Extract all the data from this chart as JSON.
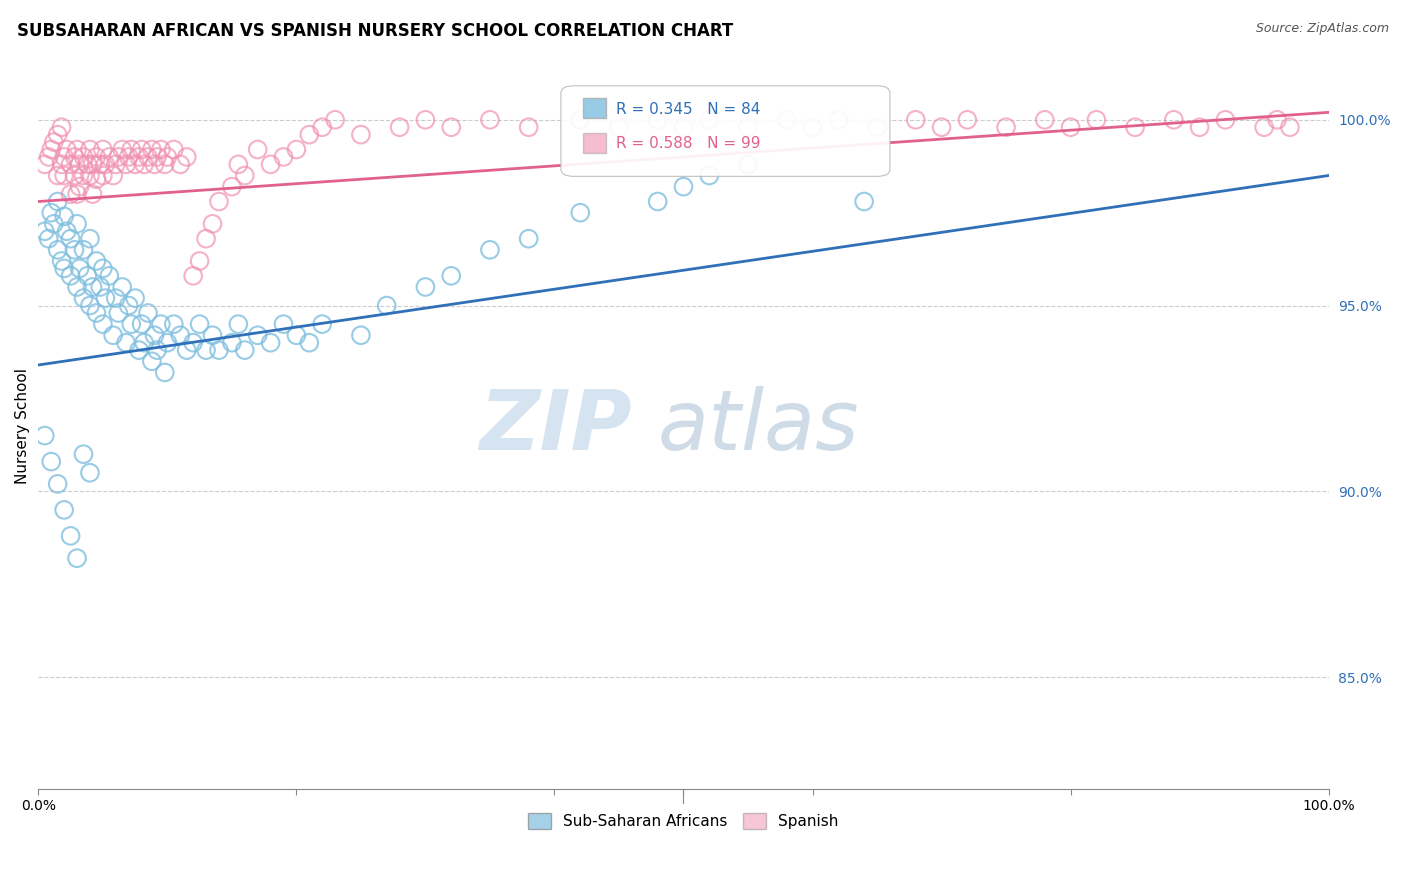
{
  "title": "SUBSAHARAN AFRICAN VS SPANISH NURSERY SCHOOL CORRELATION CHART",
  "source": "Source: ZipAtlas.com",
  "ylabel": "Nursery School",
  "ytick_labels": [
    "100.0%",
    "95.0%",
    "90.0%",
    "85.0%"
  ],
  "ytick_values": [
    1.0,
    0.95,
    0.9,
    0.85
  ],
  "xlim": [
    0.0,
    1.0
  ],
  "ylim": [
    0.82,
    1.015
  ],
  "blue_R": 0.345,
  "blue_N": 84,
  "pink_R": 0.588,
  "pink_N": 99,
  "blue_color": "#7fbfdf",
  "pink_color": "#f090b0",
  "blue_line_color": "#3070b8",
  "pink_line_color": "#e06090",
  "watermark_zip": "ZIP",
  "watermark_atlas": "atlas",
  "legend_label_blue": "Sub-Saharan Africans",
  "legend_label_pink": "Spanish",
  "blue_scatter_x": [
    0.005,
    0.008,
    0.01,
    0.012,
    0.015,
    0.015,
    0.018,
    0.02,
    0.02,
    0.022,
    0.025,
    0.025,
    0.028,
    0.03,
    0.03,
    0.032,
    0.035,
    0.035,
    0.038,
    0.04,
    0.04,
    0.042,
    0.045,
    0.045,
    0.048,
    0.05,
    0.05,
    0.052,
    0.055,
    0.058,
    0.06,
    0.062,
    0.065,
    0.068,
    0.07,
    0.072,
    0.075,
    0.078,
    0.08,
    0.082,
    0.085,
    0.088,
    0.09,
    0.092,
    0.095,
    0.098,
    0.1,
    0.105,
    0.11,
    0.115,
    0.12,
    0.125,
    0.13,
    0.135,
    0.14,
    0.15,
    0.155,
    0.16,
    0.17,
    0.18,
    0.19,
    0.2,
    0.21,
    0.22,
    0.25,
    0.27,
    0.3,
    0.32,
    0.35,
    0.38,
    0.42,
    0.48,
    0.5,
    0.52,
    0.55,
    0.64,
    0.005,
    0.01,
    0.015,
    0.02,
    0.025,
    0.03,
    0.035,
    0.04
  ],
  "blue_scatter_y": [
    0.97,
    0.968,
    0.975,
    0.972,
    0.978,
    0.965,
    0.962,
    0.974,
    0.96,
    0.97,
    0.968,
    0.958,
    0.965,
    0.972,
    0.955,
    0.96,
    0.965,
    0.952,
    0.958,
    0.968,
    0.95,
    0.955,
    0.962,
    0.948,
    0.955,
    0.96,
    0.945,
    0.952,
    0.958,
    0.942,
    0.952,
    0.948,
    0.955,
    0.94,
    0.95,
    0.945,
    0.952,
    0.938,
    0.945,
    0.94,
    0.948,
    0.935,
    0.942,
    0.938,
    0.945,
    0.932,
    0.94,
    0.945,
    0.942,
    0.938,
    0.94,
    0.945,
    0.938,
    0.942,
    0.938,
    0.94,
    0.945,
    0.938,
    0.942,
    0.94,
    0.945,
    0.942,
    0.94,
    0.945,
    0.942,
    0.95,
    0.955,
    0.958,
    0.965,
    0.968,
    0.975,
    0.978,
    0.982,
    0.985,
    0.988,
    0.978,
    0.915,
    0.908,
    0.902,
    0.895,
    0.888,
    0.882,
    0.91,
    0.905
  ],
  "pink_scatter_x": [
    0.005,
    0.008,
    0.01,
    0.012,
    0.015,
    0.015,
    0.018,
    0.018,
    0.02,
    0.02,
    0.022,
    0.025,
    0.025,
    0.028,
    0.028,
    0.03,
    0.03,
    0.032,
    0.032,
    0.035,
    0.035,
    0.038,
    0.04,
    0.04,
    0.042,
    0.042,
    0.045,
    0.045,
    0.048,
    0.05,
    0.05,
    0.052,
    0.055,
    0.058,
    0.06,
    0.062,
    0.065,
    0.068,
    0.07,
    0.072,
    0.075,
    0.078,
    0.08,
    0.082,
    0.085,
    0.088,
    0.09,
    0.092,
    0.095,
    0.098,
    0.1,
    0.105,
    0.11,
    0.115,
    0.12,
    0.125,
    0.13,
    0.135,
    0.14,
    0.15,
    0.155,
    0.16,
    0.17,
    0.18,
    0.19,
    0.2,
    0.21,
    0.22,
    0.23,
    0.25,
    0.28,
    0.3,
    0.32,
    0.35,
    0.38,
    0.42,
    0.45,
    0.48,
    0.5,
    0.52,
    0.55,
    0.58,
    0.6,
    0.62,
    0.65,
    0.68,
    0.7,
    0.72,
    0.75,
    0.78,
    0.8,
    0.82,
    0.85,
    0.88,
    0.9,
    0.92,
    0.95,
    0.96,
    0.97
  ],
  "pink_scatter_y": [
    0.988,
    0.99,
    0.992,
    0.994,
    0.996,
    0.985,
    0.988,
    0.998,
    0.99,
    0.985,
    0.992,
    0.988,
    0.98,
    0.99,
    0.985,
    0.992,
    0.98,
    0.988,
    0.982,
    0.99,
    0.985,
    0.988,
    0.992,
    0.985,
    0.988,
    0.98,
    0.99,
    0.984,
    0.988,
    0.992,
    0.985,
    0.988,
    0.99,
    0.985,
    0.988,
    0.99,
    0.992,
    0.988,
    0.99,
    0.992,
    0.988,
    0.99,
    0.992,
    0.988,
    0.99,
    0.992,
    0.988,
    0.99,
    0.992,
    0.988,
    0.99,
    0.992,
    0.988,
    0.99,
    0.958,
    0.962,
    0.968,
    0.972,
    0.978,
    0.982,
    0.988,
    0.985,
    0.992,
    0.988,
    0.99,
    0.992,
    0.996,
    0.998,
    1.0,
    0.996,
    0.998,
    1.0,
    0.998,
    1.0,
    0.998,
    1.0,
    0.998,
    1.0,
    0.998,
    1.0,
    0.998,
    1.0,
    0.998,
    1.0,
    0.998,
    1.0,
    0.998,
    1.0,
    0.998,
    1.0,
    0.998,
    1.0,
    0.998,
    1.0,
    0.998,
    1.0,
    0.998,
    1.0,
    0.998
  ]
}
